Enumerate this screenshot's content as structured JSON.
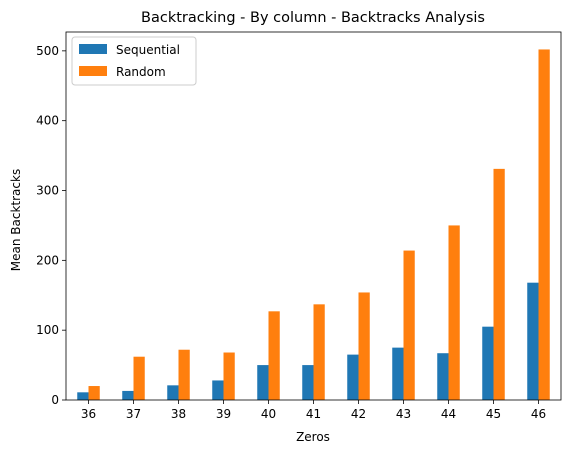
{
  "chart_data": {
    "type": "bar",
    "title": "Backtracking - By column - Backtracks Analysis",
    "xlabel": "Zeros",
    "ylabel": "Mean Backtracks",
    "categories": [
      "36",
      "37",
      "38",
      "39",
      "40",
      "41",
      "42",
      "43",
      "44",
      "45",
      "46"
    ],
    "series": [
      {
        "name": "Sequential",
        "color": "#1f77b4",
        "values": [
          11,
          13,
          21,
          28,
          50,
          50,
          65,
          75,
          67,
          105,
          168
        ]
      },
      {
        "name": "Random",
        "color": "#ff7f0e",
        "values": [
          20,
          62,
          72,
          68,
          127,
          137,
          154,
          214,
          250,
          331,
          502
        ]
      }
    ],
    "ylim": [
      0,
      527
    ],
    "yticks": [
      0,
      100,
      200,
      300,
      400,
      500
    ],
    "legend": "top-left",
    "grid": false
  }
}
